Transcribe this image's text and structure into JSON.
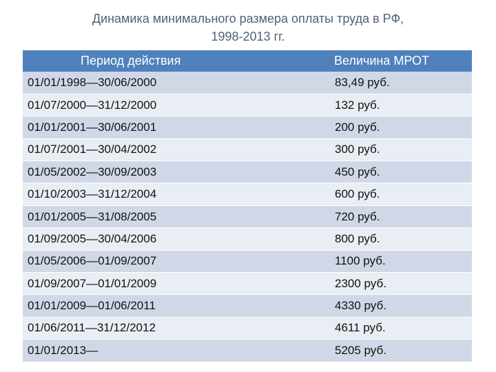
{
  "title": {
    "line1": "Динамика минимального размера оплаты труда в РФ,",
    "line2": "1998-2013 гг."
  },
  "table": {
    "headers": [
      "Период действия",
      "Величина  МРОТ"
    ],
    "rows": [
      [
        "01/01/1998—30/06/2000",
        "83,49 руб."
      ],
      [
        "01/07/2000—31/12/2000",
        "132 руб."
      ],
      [
        "01/01/2001—30/06/2001",
        "200 руб."
      ],
      [
        "01/07/2001—30/04/2002",
        "300 руб."
      ],
      [
        "01/05/2002—30/09/2003",
        "450 руб."
      ],
      [
        "01/10/2003—31/12/2004",
        "600 руб."
      ],
      [
        "01/01/2005—31/08/2005",
        "720 руб."
      ],
      [
        "01/09/2005—30/04/2006",
        "800 руб."
      ],
      [
        "01/05/2006—01/09/2007",
        "1100 руб."
      ],
      [
        "01/09/2007—01/01/2009",
        "2300 руб."
      ],
      [
        "01/01/2009—01/06/2011",
        "4330 руб."
      ],
      [
        "01/06/2011—31/12/2012",
        "4611 руб."
      ],
      [
        "01/01/2013—",
        "5205 руб."
      ]
    ]
  },
  "colors": {
    "header_bg": "#4f81bd",
    "row_odd": "#d0d8e8",
    "row_even": "#e9edf4",
    "title_text": "#4f6277"
  }
}
